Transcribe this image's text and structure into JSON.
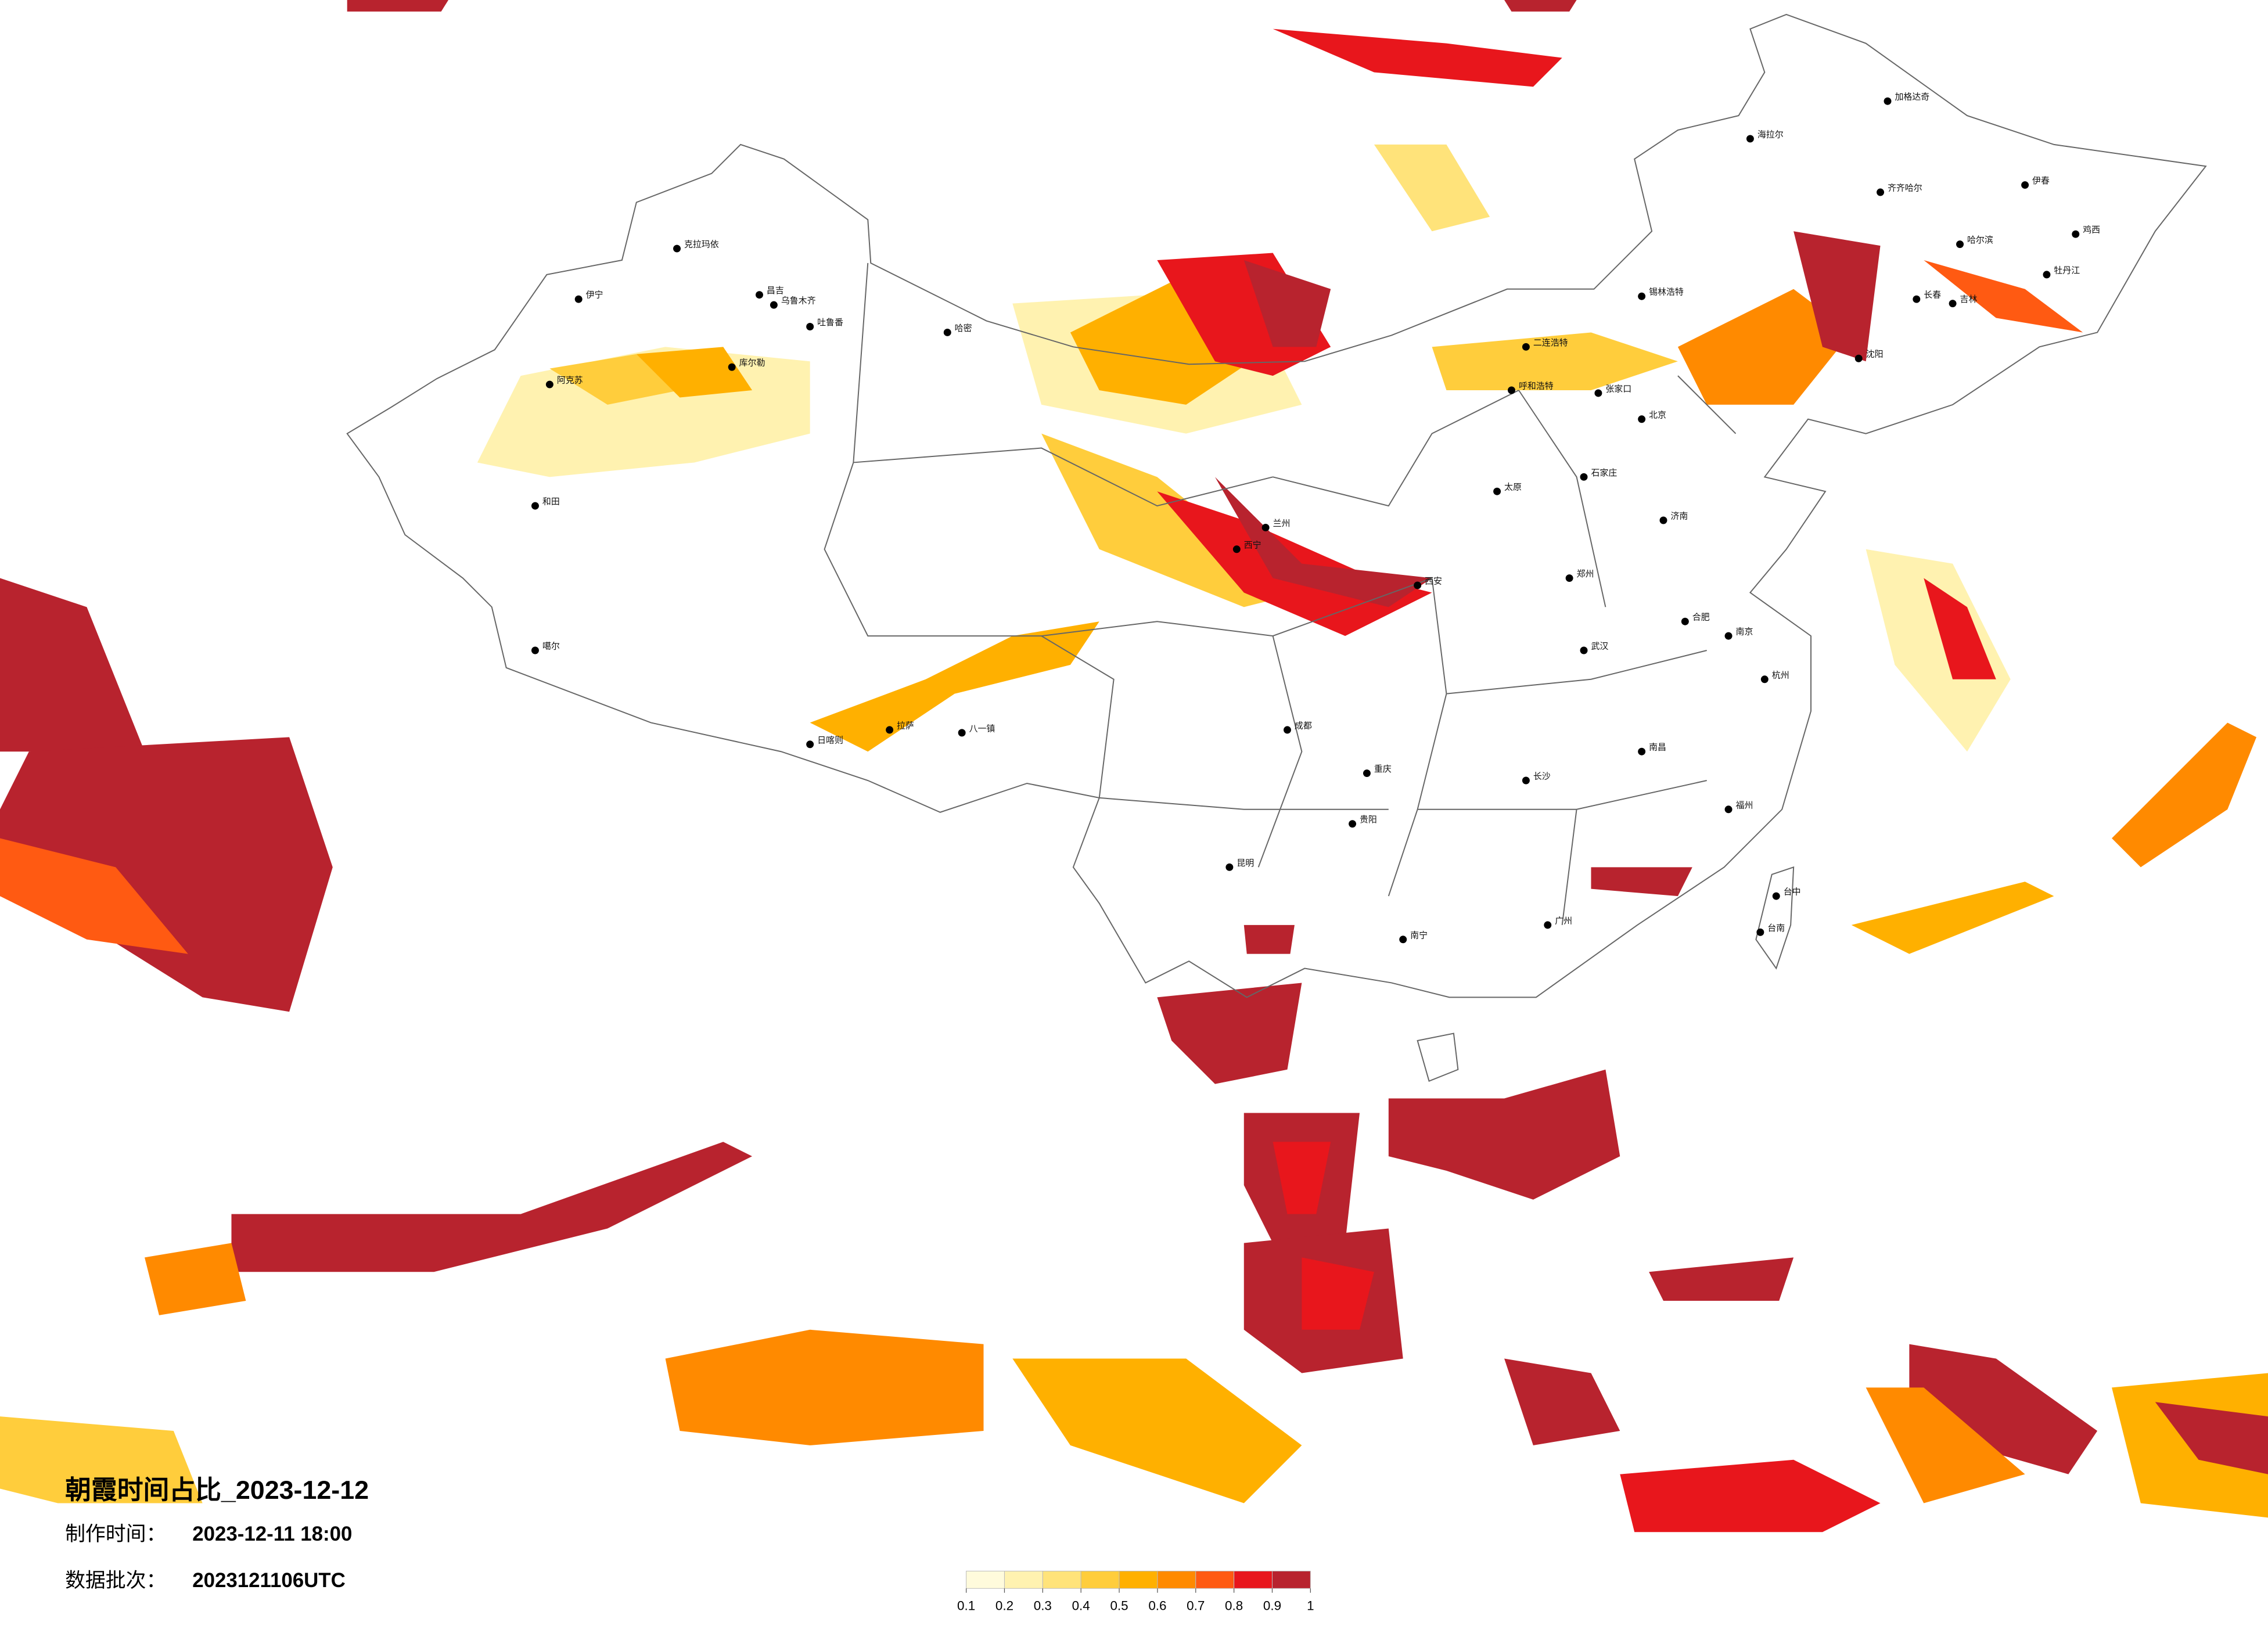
{
  "title": "朝霞时间占比_2023-12-12",
  "made_label": "制作时间：",
  "made_time": "2023-12-11 18:00",
  "batch_label": "数据批次：",
  "batch": "2023121106UTC",
  "legend": {
    "colors": [
      "#fffbdc",
      "#fff2b0",
      "#ffe37a",
      "#ffcd3c",
      "#ffb000",
      "#ff8a00",
      "#ff5a12",
      "#e8161c",
      "#b8232e"
    ],
    "ticks": [
      0.1,
      0.2,
      0.3,
      0.4,
      0.5,
      0.6,
      0.7,
      0.8,
      0.9,
      1
    ]
  },
  "cities": [
    "克拉玛依",
    "伊宁",
    "昌吉",
    "乌鲁木齐",
    "吐鲁番",
    "哈密",
    "阿克苏",
    "库尔勒",
    "和田",
    "噶尔",
    "日喀则",
    "拉萨",
    "八一镇",
    "海拉尔",
    "加格达奇",
    "齐齐哈尔",
    "哈尔滨",
    "长春",
    "吉林",
    "沈阳",
    "北京",
    "呼和浩特",
    "张家口",
    "石家庄",
    "太原",
    "济南",
    "郑州",
    "西安",
    "兰州",
    "西宁",
    "武汉",
    "长沙",
    "南昌",
    "合肥",
    "南京",
    "杭州",
    "福州",
    "广州",
    "南宁",
    "贵阳",
    "昆明",
    "成都",
    "重庆",
    "台中",
    "台南",
    "伊春",
    "牡丹江",
    "鸡西",
    "锡林浩特",
    "二连浩特"
  ]
}
